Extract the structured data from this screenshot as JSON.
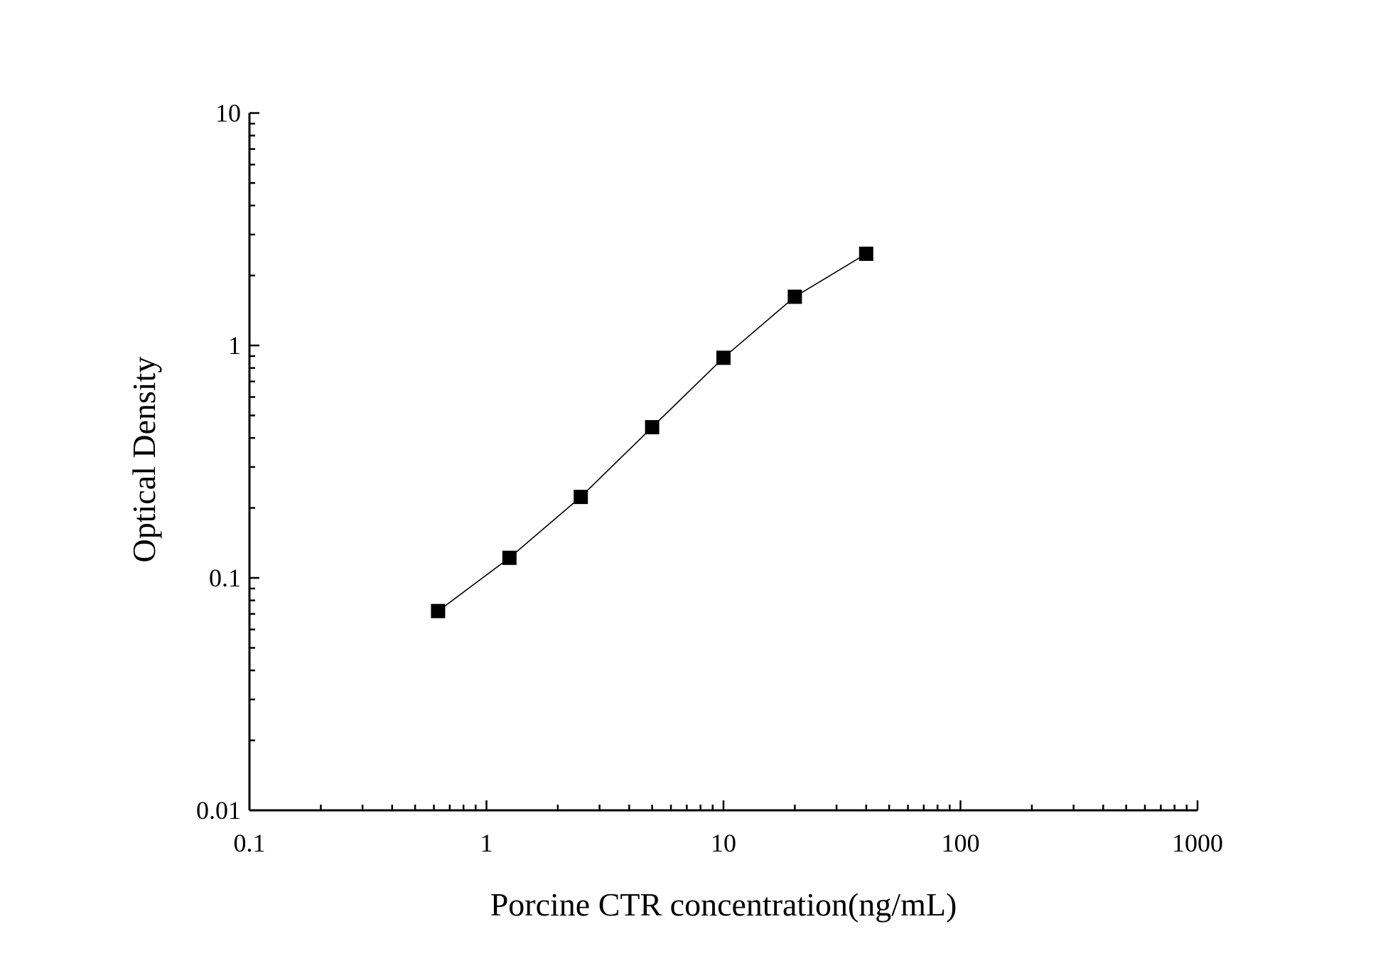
{
  "chart_data": {
    "type": "line",
    "title": "",
    "xlabel": "Porcine CTR concentration(ng/mL)",
    "ylabel": "Optical Density",
    "xscale": "log",
    "yscale": "log",
    "xlim": [
      0.1,
      1000
    ],
    "ylim": [
      0.01,
      10
    ],
    "grid": false,
    "legend": "none",
    "x_ticks": [
      {
        "value": 0.1,
        "label": "0.1"
      },
      {
        "value": 1,
        "label": "1"
      },
      {
        "value": 10,
        "label": "10"
      },
      {
        "value": 100,
        "label": "100"
      },
      {
        "value": 1000,
        "label": "1000"
      }
    ],
    "y_ticks": [
      {
        "value": 0.01,
        "label": "0.01"
      },
      {
        "value": 0.1,
        "label": "0.1"
      },
      {
        "value": 1,
        "label": "1"
      },
      {
        "value": 10,
        "label": "10"
      }
    ],
    "series": [
      {
        "x": [
          0.625,
          1.25,
          2.5,
          5,
          10,
          20,
          40
        ],
        "y": [
          0.072,
          0.122,
          0.223,
          0.445,
          0.885,
          1.62,
          2.48
        ]
      }
    ],
    "colors": {
      "axis": "#000000",
      "line": "#000000",
      "marker": "#000000"
    },
    "marker": "square"
  }
}
